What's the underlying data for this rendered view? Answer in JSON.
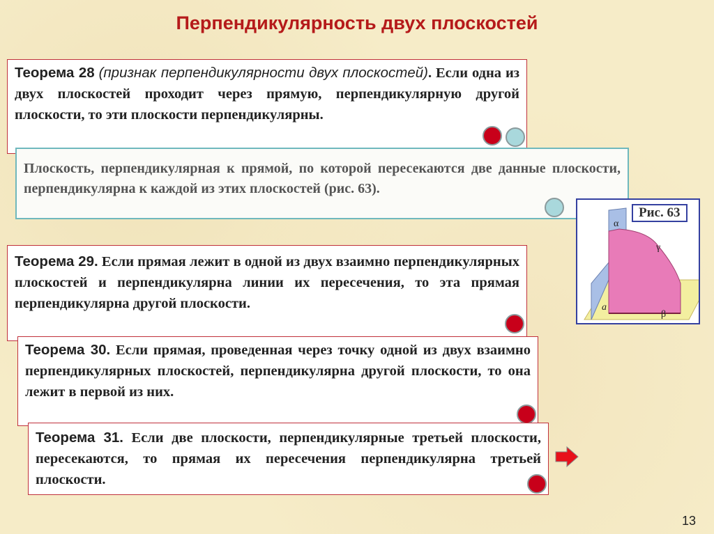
{
  "title": "Перпендикулярность двух плоскостей",
  "theorem28": {
    "label": "Теорема 28",
    "note": "(признак перпендикулярности двух плоскостей)",
    "text": ". Если одна из двух плоскостей проходит через прямую, перпендикулярную другой плоскости, то эти плоскости перпендикулярны."
  },
  "corollary": {
    "text": "Плоскость, перпендикулярная к прямой, по которой пересекаются две данные плоскости, перпендикулярна к каждой из этих плоскостей (рис. 63)."
  },
  "theorem29": {
    "label": "Теорема 29.",
    "text": " Если прямая лежит в одной из двух взаимно перпендикулярных плоскостей и перпендикулярна линии их пересечения, то эта прямая перпендикулярна другой плоскости."
  },
  "theorem30": {
    "label": "Теорема 30.",
    "text": " Если прямая, проведенная через точку одной из двух взаимно перпендикулярных плоскостей, перпендикулярна другой плоскости, то она лежит в первой из них."
  },
  "theorem31": {
    "label": "Теорема 31.",
    "text": " Если две плоскости, перпендикулярные третьей плоскости, пересекаются, то прямая их пересечения перпендикулярна третьей плоскости."
  },
  "figure": {
    "caption": "Рис. 63",
    "labels": {
      "alpha": "α",
      "beta": "β",
      "gamma": "γ",
      "a": "a"
    },
    "colors": {
      "alpha": "#a9bfe6",
      "beta": "#f3efa0",
      "gamma": "#e87bb8"
    }
  },
  "page_number": "13",
  "colors": {
    "title": "#b51a1a",
    "red_marker": "#c8001a",
    "teal_marker": "#a9d8dc",
    "arrow": "#e8101a"
  }
}
